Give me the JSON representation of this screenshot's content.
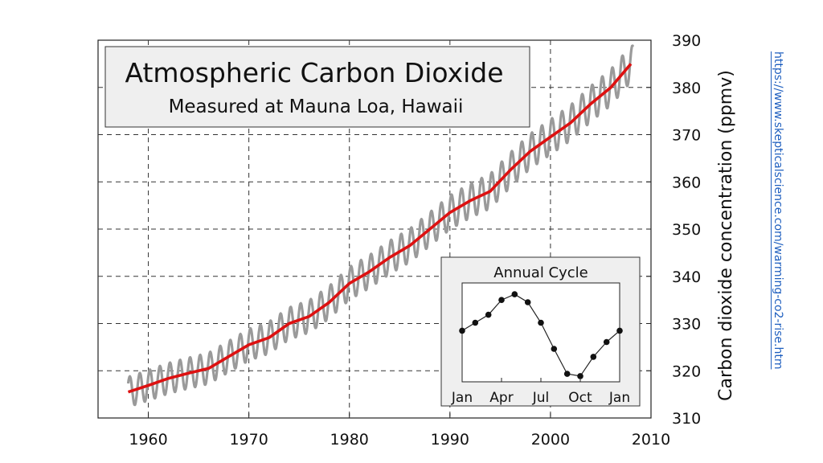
{
  "chart_data": [
    {
      "type": "line",
      "title": "Atmospheric Carbon Dioxide",
      "subtitle": "Measured at Mauna Loa, Hawaii",
      "xlabel": "",
      "ylabel": "Carbon dioxide concentration (ppmv)",
      "xlim": [
        1955,
        2010
      ],
      "ylim": [
        310,
        390
      ],
      "xticks": [
        1960,
        1970,
        1980,
        1990,
        2000,
        2010
      ],
      "yticks": [
        310,
        320,
        330,
        340,
        350,
        360,
        370,
        380,
        390
      ],
      "grid": true,
      "series": [
        {
          "role": "monthly",
          "color": "#9a9a9a",
          "note": "seasonal oscillation of about +/-3 ppmv around the trend",
          "x": [
            1958,
            1960,
            1962,
            1964,
            1966,
            1968,
            1970,
            1972,
            1974,
            1976,
            1978,
            1980,
            1982,
            1984,
            1986,
            1988,
            1990,
            1992,
            1994,
            1996,
            1998,
            2000,
            2002,
            2004,
            2006,
            2008
          ],
          "y": [
            315.5,
            316.9,
            318.4,
            319.5,
            320.5,
            323.0,
            325.5,
            327.0,
            330.0,
            331.5,
            334.5,
            338.5,
            341.0,
            344.0,
            346.5,
            350.0,
            353.5,
            356.0,
            358.0,
            362.5,
            366.5,
            369.5,
            372.5,
            376.5,
            380.0,
            385.0
          ],
          "amplitude": 3.2
        },
        {
          "role": "trend",
          "color": "#dd1111",
          "x": [
            1958,
            1960,
            1962,
            1964,
            1966,
            1968,
            1970,
            1972,
            1974,
            1976,
            1978,
            1980,
            1982,
            1984,
            1986,
            1988,
            1990,
            1992,
            1994,
            1996,
            1998,
            2000,
            2002,
            2004,
            2006,
            2008
          ],
          "y": [
            315.5,
            316.9,
            318.4,
            319.5,
            320.5,
            323.0,
            325.5,
            327.0,
            330.0,
            331.5,
            334.5,
            338.5,
            341.0,
            344.0,
            346.5,
            350.0,
            353.5,
            356.0,
            358.0,
            362.5,
            366.5,
            369.5,
            372.5,
            376.5,
            380.0,
            385.0
          ]
        }
      ]
    },
    {
      "type": "line",
      "title": "Annual Cycle",
      "categories": [
        "Jan",
        "Apr",
        "Jul",
        "Oct",
        "Jan"
      ],
      "series": [
        {
          "x": [
            0,
            1,
            2,
            3,
            4,
            5,
            6,
            7,
            8,
            9,
            10,
            11,
            12
          ],
          "y": [
            0.0,
            0.7,
            1.4,
            2.7,
            3.2,
            2.5,
            0.7,
            -1.6,
            -3.8,
            -4.0,
            -2.3,
            -1.0,
            0.0
          ]
        }
      ]
    }
  ],
  "source": {
    "url_text": "https://www.skepticalscience.com/warming-co2-rise.htm"
  }
}
